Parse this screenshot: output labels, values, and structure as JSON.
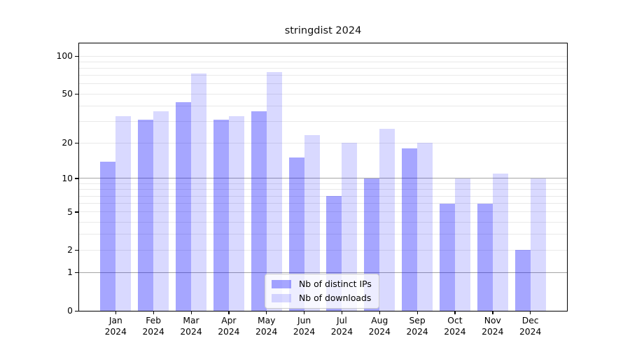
{
  "title": "stringdist 2024",
  "legend": {
    "items": [
      {
        "label": "Nb of distinct IPs",
        "color": "rgba(0,0,255,0.35)"
      },
      {
        "label": "Nb of downloads",
        "color": "rgba(0,0,255,0.15)"
      }
    ]
  },
  "y_axis": {
    "tick_labels": [
      "0",
      "1",
      "2",
      "5",
      "10",
      "20",
      "50",
      "100"
    ],
    "tick_values": [
      0,
      1,
      2,
      5,
      10,
      20,
      50,
      100
    ]
  },
  "x_axis": {
    "months": [
      "Jan",
      "Feb",
      "Mar",
      "Apr",
      "May",
      "Jun",
      "Jul",
      "Aug",
      "Sep",
      "Oct",
      "Nov",
      "Dec"
    ],
    "year": "2024"
  },
  "chart_data": {
    "type": "bar",
    "title": "stringdist 2024",
    "y_scale": "log1p",
    "grid": "on",
    "legend_position": "inside lower center",
    "categories": [
      "Jan 2024",
      "Feb 2024",
      "Mar 2024",
      "Apr 2024",
      "May 2024",
      "Jun 2024",
      "Jul 2024",
      "Aug 2024",
      "Sep 2024",
      "Oct 2024",
      "Nov 2024",
      "Dec 2024"
    ],
    "series": [
      {
        "name": "Nb of distinct IPs",
        "values": [
          14,
          31,
          43,
          31,
          36,
          15,
          7,
          10,
          18,
          6,
          6,
          2
        ]
      },
      {
        "name": "Nb of downloads",
        "values": [
          33,
          36,
          73,
          33,
          75,
          23,
          20,
          26,
          20,
          10,
          11,
          10
        ]
      }
    ],
    "y_ticks": [
      0,
      1,
      2,
      5,
      10,
      20,
      50,
      100
    ],
    "minor_gridlines": [
      2,
      3,
      4,
      5,
      6,
      7,
      8,
      9,
      20,
      30,
      40,
      50,
      60,
      70,
      80,
      90,
      100
    ],
    "emphasized_gridlines": [
      1,
      10
    ],
    "ylim": [
      0,
      126
    ],
    "colors": {
      "distinct_ips": "rgba(0,0,255,0.35)",
      "downloads": "rgba(0,0,255,0.15)",
      "grid_minor": "#e9e9e9",
      "grid_emphasized": "#a5a5a5",
      "axis": "#000000"
    }
  }
}
